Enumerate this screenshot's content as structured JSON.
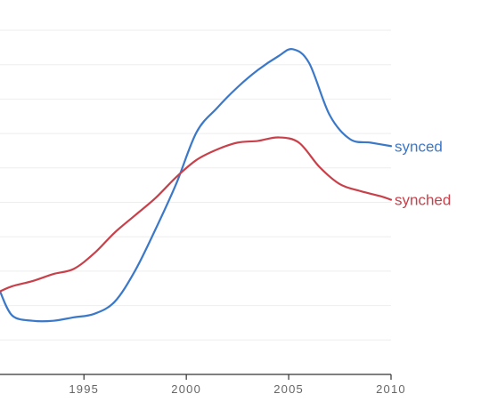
{
  "chart_data": {
    "type": "line",
    "title": "",
    "xlabel": "",
    "ylabel": "",
    "xlim": [
      1990.9,
      2010
    ],
    "ylim": [
      0,
      1
    ],
    "grid": "horizontal",
    "x_ticks": [
      "1995",
      "2000",
      "2005",
      "2010"
    ],
    "series": [
      {
        "name": "synced",
        "color": "#3b78c8",
        "points": [
          [
            1990.9,
            0.24
          ],
          [
            1991.5,
            0.17
          ],
          [
            1992.5,
            0.155
          ],
          [
            1993.5,
            0.155
          ],
          [
            1994.5,
            0.165
          ],
          [
            1995.5,
            0.175
          ],
          [
            1996.5,
            0.21
          ],
          [
            1997.5,
            0.3
          ],
          [
            1998.5,
            0.42
          ],
          [
            1999.5,
            0.55
          ],
          [
            2000.5,
            0.7
          ],
          [
            2001.5,
            0.77
          ],
          [
            2002.5,
            0.83
          ],
          [
            2003.5,
            0.88
          ],
          [
            2004.5,
            0.92
          ],
          [
            2005.2,
            0.94
          ],
          [
            2006,
            0.9
          ],
          [
            2007,
            0.75
          ],
          [
            2008,
            0.68
          ],
          [
            2009,
            0.67
          ],
          [
            2010,
            0.66
          ]
        ]
      },
      {
        "name": "synched",
        "color": "#c8404a",
        "points": [
          [
            1990.9,
            0.24
          ],
          [
            1991.5,
            0.255
          ],
          [
            1992.5,
            0.27
          ],
          [
            1993.5,
            0.29
          ],
          [
            1994.5,
            0.305
          ],
          [
            1995.5,
            0.35
          ],
          [
            1996.5,
            0.41
          ],
          [
            1997.5,
            0.46
          ],
          [
            1998.5,
            0.51
          ],
          [
            1999.5,
            0.57
          ],
          [
            2000.5,
            0.62
          ],
          [
            2001.5,
            0.65
          ],
          [
            2002.5,
            0.67
          ],
          [
            2003.5,
            0.675
          ],
          [
            2004.5,
            0.685
          ],
          [
            2005.5,
            0.67
          ],
          [
            2006.5,
            0.6
          ],
          [
            2007.5,
            0.55
          ],
          [
            2008.5,
            0.53
          ],
          [
            2009.5,
            0.515
          ],
          [
            2010,
            0.505
          ]
        ]
      }
    ]
  }
}
